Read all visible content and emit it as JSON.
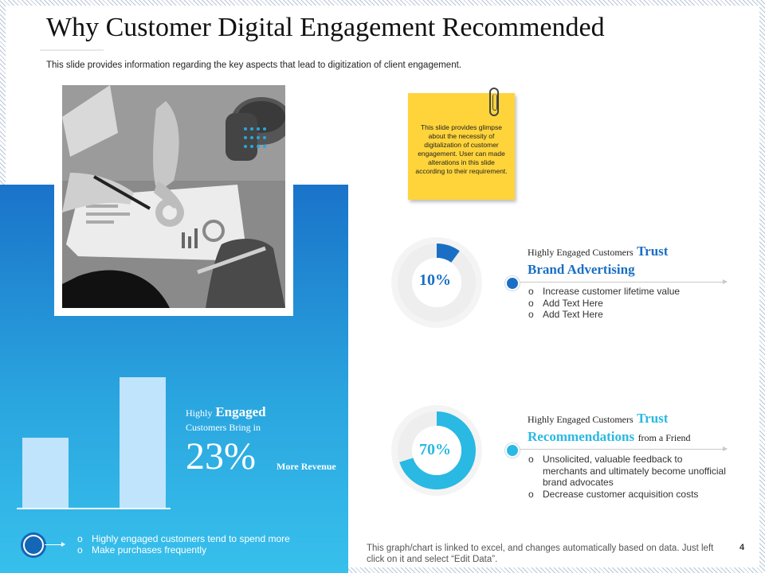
{
  "slide": {
    "title": "Why Customer Digital Engagement Recommended",
    "subtitle": "This slide provides information regarding the key aspects that lead to digitization of client engagement.",
    "page_number": "4"
  },
  "left_panel": {
    "photo_icon": "business-meeting-photo",
    "stat": {
      "word1": "Highly",
      "word2": "Engaged",
      "line2": "Customers Bring in",
      "value": "23%",
      "suffix": "More Revenue"
    },
    "bars": [
      0.44,
      0.82
    ],
    "bullets": [
      "Highly engaged customers tend to spend more",
      "Make purchases frequently"
    ]
  },
  "sticky_note": {
    "text": "This slide provides glimpse about the necessity of digitalization of customer engagement. User can made alterations in this slide according to their requirement."
  },
  "items": [
    {
      "percent_label": "10%",
      "percent": 10,
      "color": "#1a6fc4",
      "pre": "Highly Engaged  Customers",
      "emph1": "Trust",
      "emph2": "Brand Advertising",
      "tail": "",
      "bullets": [
        "Increase customer lifetime value",
        "Add Text Here",
        "Add Text Here"
      ]
    },
    {
      "percent_label": "70%",
      "percent": 70,
      "color": "#29b9e3",
      "pre": "Highly Engaged  Customers",
      "emph1": "Trust",
      "emph2": "Recommendations",
      "tail": "from a Friend",
      "bullets": [
        "Unsolicited, valuable feedback to merchants and ultimately become unofficial brand advocates",
        "Decrease customer acquisition costs"
      ]
    }
  ],
  "footer": {
    "note": "This graph/chart is linked to excel, and changes automatically based on data. Just left click on it and select “Edit Data”."
  }
}
